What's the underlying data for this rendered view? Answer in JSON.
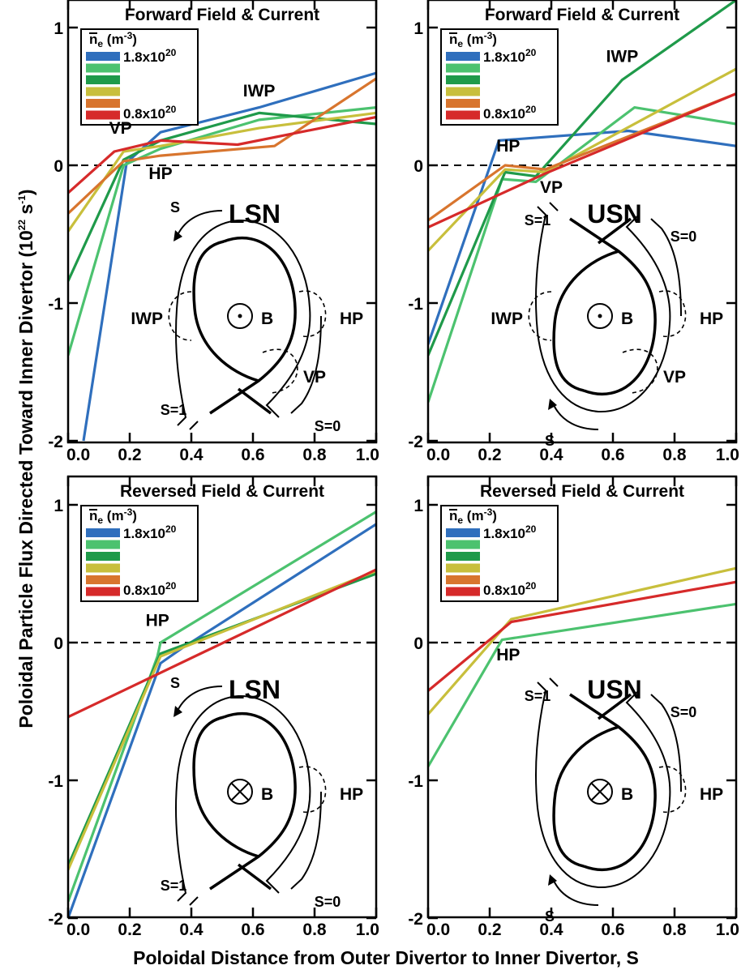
{
  "figure": {
    "ylabel_main": "Poloidal Particle Flux Directed Toward Inner Divertor (10",
    "ylabel_exp": "22",
    "ylabel_unit": " s",
    "ylabel_unit_exp": "-1",
    "ylabel_close": ")",
    "xlabel": "Poloidal Distance from Outer Divertor to Inner Divertor, S"
  },
  "legend": {
    "title_n": "n",
    "title_sub": "e",
    "title_unit": " (m",
    "title_unit_exp": "-3",
    "title_close": ")",
    "high_base": "1.8x10",
    "high_exp": "20",
    "low_base": "0.8x10",
    "low_exp": "20"
  },
  "colors": {
    "c1": "#2f6fbd",
    "c2": "#4cc26f",
    "c3": "#1f9a4a",
    "c4": "#c8bf3c",
    "c5": "#d8752e",
    "c6": "#d62a2a"
  },
  "chart_data": [
    {
      "type": "line",
      "title": "Forward Field & Current",
      "xlim": [
        0,
        1
      ],
      "ylim": [
        -2,
        1
      ],
      "xticks": [
        "0.0",
        "0.2",
        "0.4",
        "0.6",
        "0.8",
        "1.0"
      ],
      "yticks": [
        "-2",
        "-1",
        "0",
        "1"
      ],
      "config_label": "LSN",
      "field_symbol": "dot",
      "annotations": [
        "VP",
        "HP",
        "IWP"
      ],
      "diagram_labels": {
        "s": "S",
        "s1": "S=1",
        "s0": "S=0",
        "b": "B",
        "iwp": "IWP",
        "hp": "HP",
        "vp": "VP"
      },
      "series": [
        {
          "color": "#2f6fbd",
          "x": [
            0.05,
            0.19,
            0.3,
            0.62,
            1.0
          ],
          "y": [
            -2.0,
            0.02,
            0.24,
            0.42,
            0.67
          ]
        },
        {
          "color": "#4cc26f",
          "x": [
            0.0,
            0.18,
            0.3,
            0.62,
            1.0
          ],
          "y": [
            -1.38,
            0.0,
            0.12,
            0.33,
            0.42
          ]
        },
        {
          "color": "#1f9a4a",
          "x": [
            0.0,
            0.18,
            0.3,
            0.62,
            1.0
          ],
          "y": [
            -0.84,
            0.04,
            0.18,
            0.38,
            0.3
          ]
        },
        {
          "color": "#c8bf3c",
          "x": [
            0.0,
            0.18,
            0.3,
            0.62,
            1.0
          ],
          "y": [
            -0.48,
            0.1,
            0.14,
            0.27,
            0.38
          ]
        },
        {
          "color": "#d8752e",
          "x": [
            0.0,
            0.18,
            0.3,
            0.67,
            1.0
          ],
          "y": [
            -0.35,
            0.03,
            0.07,
            0.14,
            0.63
          ]
        },
        {
          "color": "#d62a2a",
          "x": [
            0.0,
            0.15,
            0.3,
            0.55,
            1.0
          ],
          "y": [
            -0.2,
            0.1,
            0.18,
            0.15,
            0.35
          ]
        }
      ]
    },
    {
      "type": "line",
      "title": "Forward Field & Current",
      "xlim": [
        0,
        1
      ],
      "ylim": [
        -2,
        1
      ],
      "xticks": [
        "0.0",
        "0.2",
        "0.4",
        "0.6",
        "0.8",
        "1.0"
      ],
      "yticks": [
        "-2",
        "-1",
        "0",
        "1"
      ],
      "config_label": "USN",
      "field_symbol": "dot",
      "annotations": [
        "HP",
        "VP",
        "IWP"
      ],
      "diagram_labels": {
        "s": "S",
        "s1": "S=1",
        "s0": "S=0",
        "b": "B",
        "iwp": "IWP",
        "hp": "HP",
        "vp": "VP"
      },
      "series": [
        {
          "color": "#2f6fbd",
          "x": [
            0.0,
            0.23,
            0.65,
            1.0
          ],
          "y": [
            -1.3,
            0.18,
            0.25,
            0.14
          ]
        },
        {
          "color": "#4cc26f",
          "x": [
            0.0,
            0.24,
            0.35,
            0.67,
            1.0
          ],
          "y": [
            -1.72,
            -0.1,
            -0.12,
            0.42,
            0.3
          ]
        },
        {
          "color": "#1f9a4a",
          "x": [
            0.0,
            0.25,
            0.35,
            0.63,
            1.0
          ],
          "y": [
            -1.38,
            -0.05,
            -0.08,
            0.62,
            1.2
          ]
        },
        {
          "color": "#c8bf3c",
          "x": [
            0.0,
            0.25,
            0.38,
            1.0
          ],
          "y": [
            -0.62,
            -0.03,
            -0.05,
            0.7
          ]
        },
        {
          "color": "#d8752e",
          "x": [
            0.0,
            0.25,
            0.38,
            1.0
          ],
          "y": [
            -0.4,
            0.0,
            -0.03,
            0.52
          ]
        },
        {
          "color": "#d62a2a",
          "x": [
            0.0,
            0.38,
            1.0
          ],
          "y": [
            -0.45,
            -0.06,
            0.52
          ]
        }
      ]
    },
    {
      "type": "line",
      "title": "Reversed Field & Current",
      "xlim": [
        0,
        1
      ],
      "ylim": [
        -2,
        1
      ],
      "xticks": [
        "0.0",
        "0.2",
        "0.4",
        "0.6",
        "0.8",
        "1.0"
      ],
      "yticks": [
        "-2",
        "-1",
        "0",
        "1"
      ],
      "config_label": "LSN",
      "field_symbol": "cross",
      "annotations": [
        "HP"
      ],
      "diagram_labels": {
        "s": "S",
        "s1": "S=1",
        "s0": "S=0",
        "b": "B",
        "hp": "HP"
      },
      "series": [
        {
          "color": "#2f6fbd",
          "x": [
            0.0,
            0.3,
            0.37,
            1.0
          ],
          "y": [
            -2.0,
            -0.15,
            -0.04,
            0.86
          ]
        },
        {
          "color": "#4cc26f",
          "x": [
            0.0,
            0.29,
            0.3,
            1.0
          ],
          "y": [
            -1.88,
            -0.1,
            0.0,
            0.95
          ]
        },
        {
          "color": "#1f9a4a",
          "x": [
            0.0,
            0.3,
            1.0
          ],
          "y": [
            -1.62,
            -0.08,
            0.5
          ]
        },
        {
          "color": "#c8bf3c",
          "x": [
            0.0,
            0.3,
            1.0
          ],
          "y": [
            -1.65,
            -0.1,
            0.52
          ]
        },
        {
          "color": "#d62a2a",
          "x": [
            0.0,
            1.0
          ],
          "y": [
            -0.54,
            0.53
          ]
        }
      ]
    },
    {
      "type": "line",
      "title": "Reversed Field & Current",
      "xlim": [
        0,
        1
      ],
      "ylim": [
        -2,
        1
      ],
      "xticks": [
        "0.0",
        "0.2",
        "0.4",
        "0.6",
        "0.8",
        "1.0"
      ],
      "yticks": [
        "-2",
        "-1",
        "0",
        "1"
      ],
      "config_label": "USN",
      "field_symbol": "cross",
      "annotations": [
        "HP"
      ],
      "diagram_labels": {
        "s": "S",
        "s1": "S=1",
        "s0": "S=0",
        "b": "B",
        "hp": "HP"
      },
      "series": [
        {
          "color": "#4cc26f",
          "x": [
            0.0,
            0.24,
            1.0
          ],
          "y": [
            -0.9,
            0.02,
            0.28
          ]
        },
        {
          "color": "#c8bf3c",
          "x": [
            0.0,
            0.27,
            1.0
          ],
          "y": [
            -0.52,
            0.17,
            0.54
          ]
        },
        {
          "color": "#d62a2a",
          "x": [
            0.0,
            0.27,
            1.0
          ],
          "y": [
            -0.35,
            0.15,
            0.44
          ]
        }
      ]
    }
  ]
}
